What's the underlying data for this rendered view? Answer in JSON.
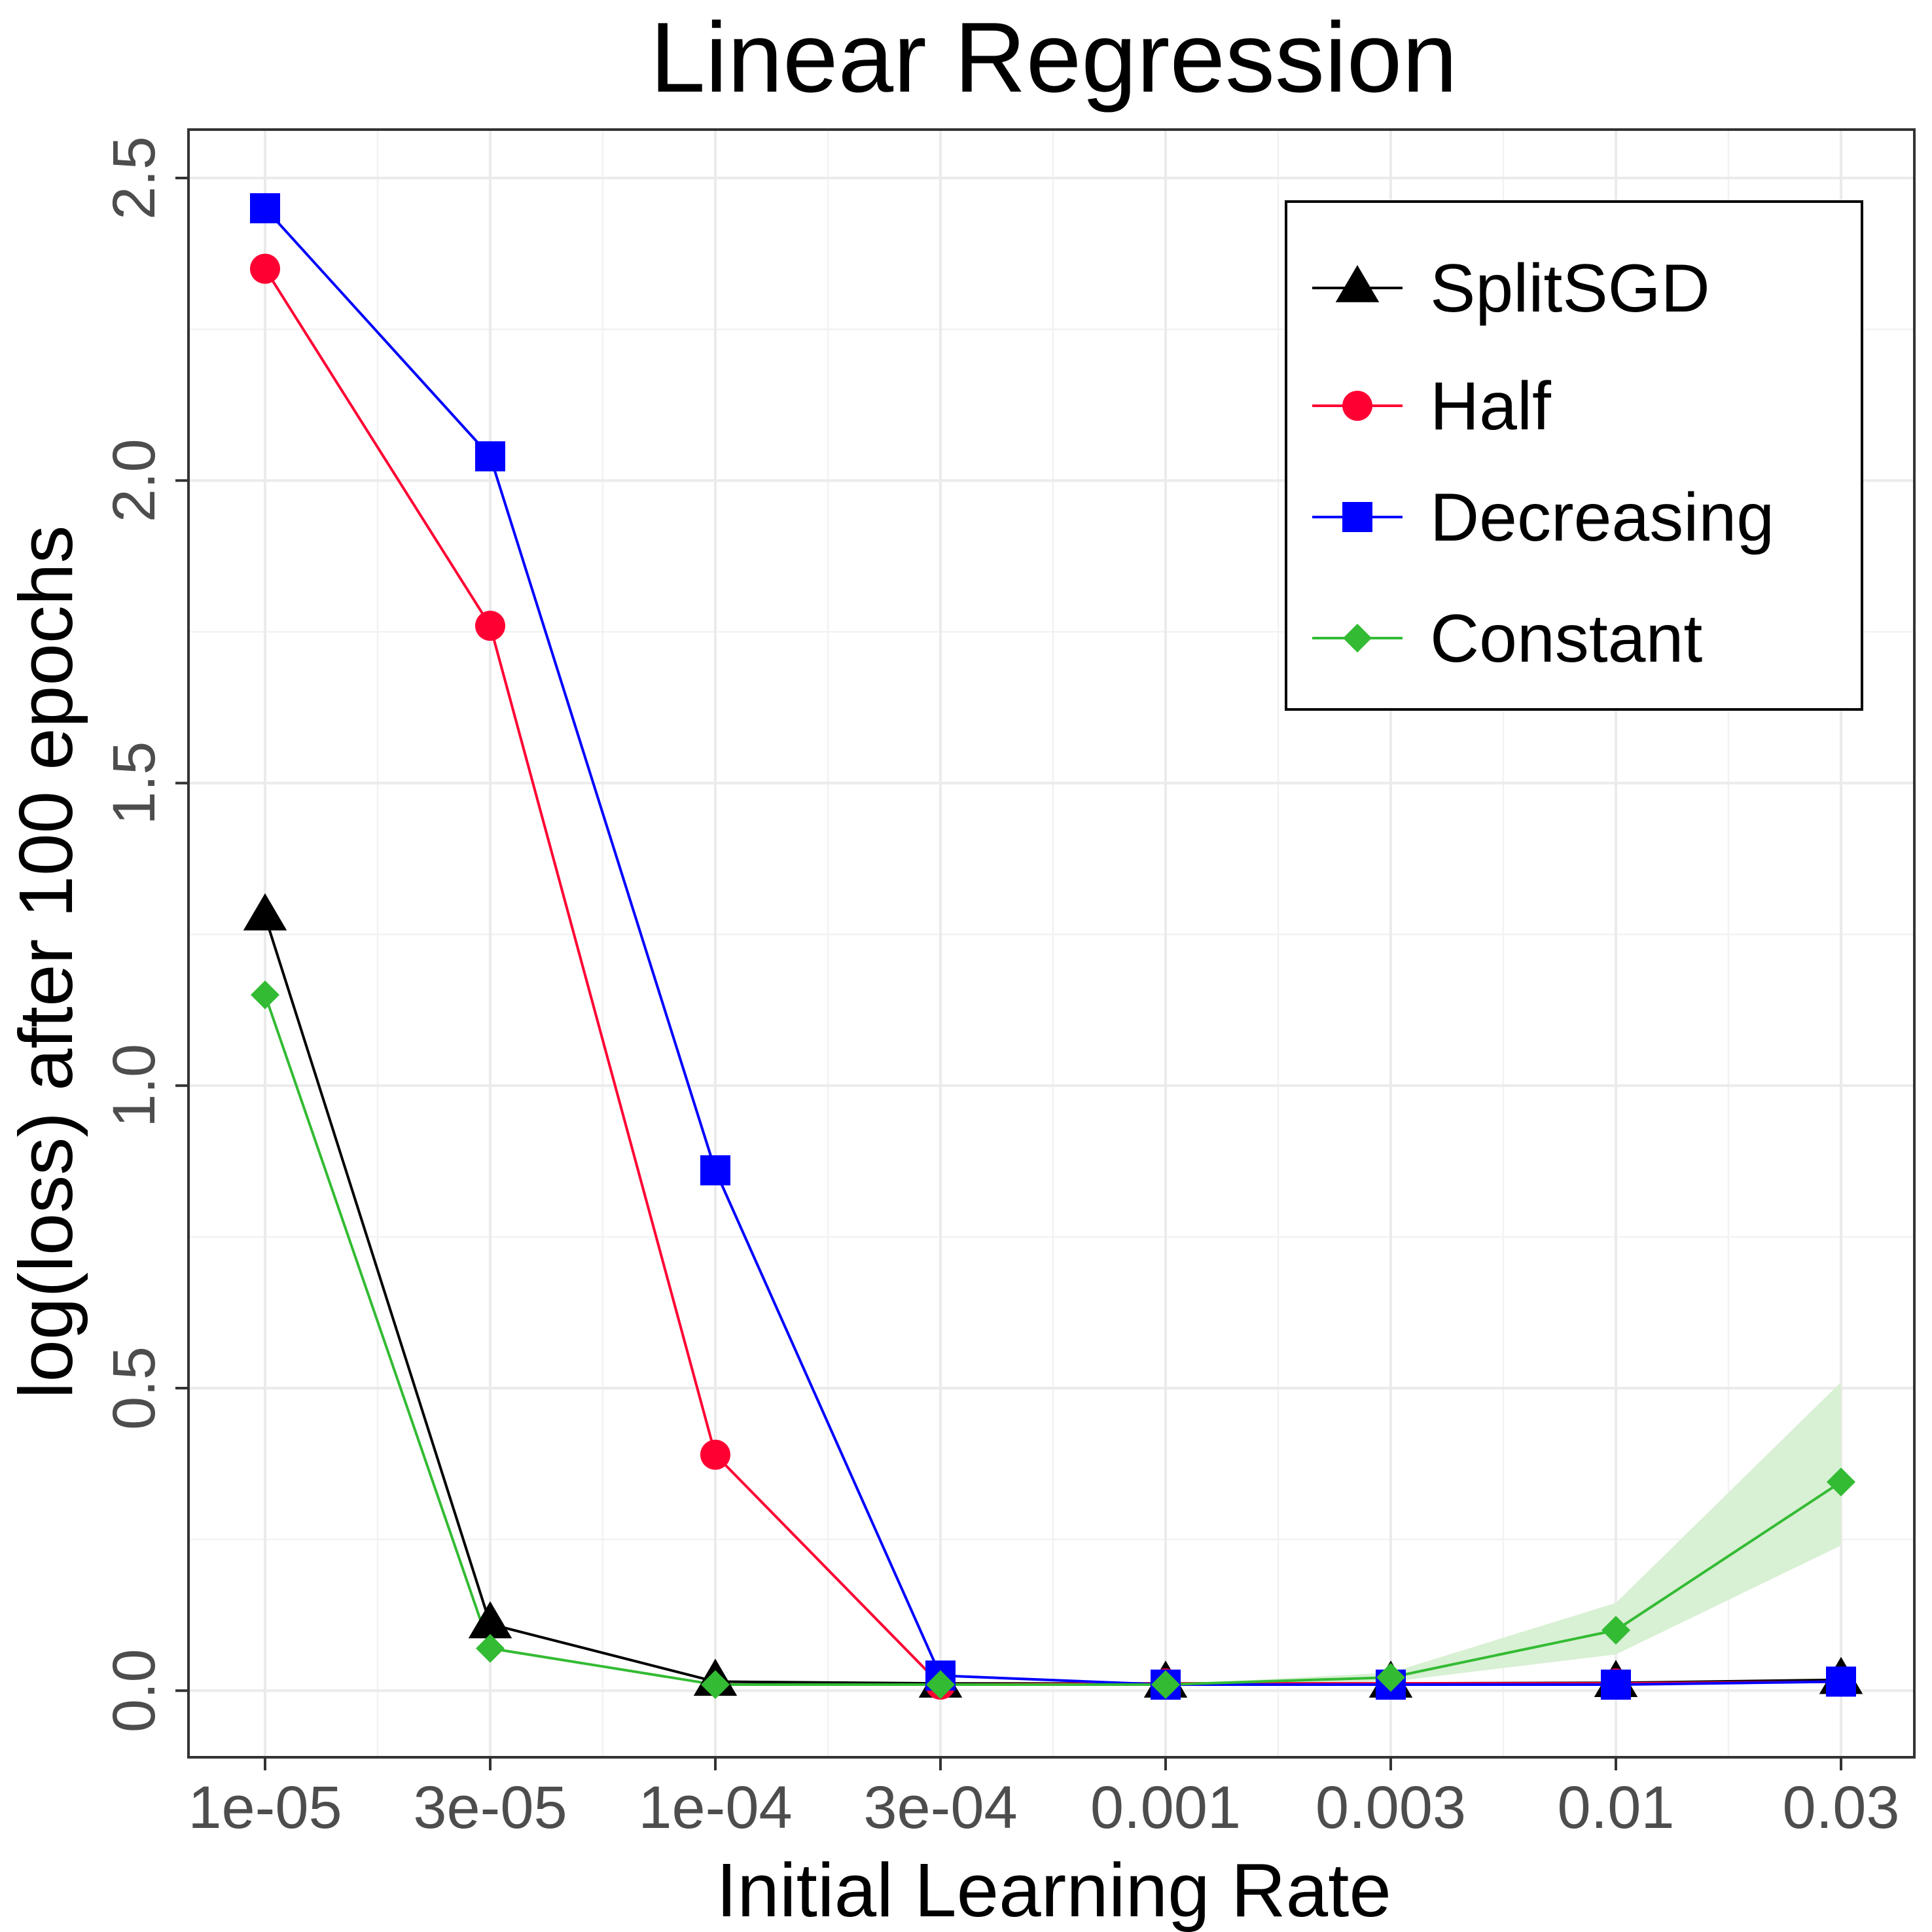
{
  "chart_data": {
    "type": "line",
    "title": "Linear Regression",
    "xlabel": "Initial Learning Rate",
    "ylabel": "log(loss) after 100 epochs",
    "categories": [
      "1e-05",
      "3e-05",
      "1e-04",
      "3e-04",
      "0.001",
      "0.003",
      "0.01",
      "0.03"
    ],
    "ylim": [
      -0.11,
      2.58
    ],
    "yticks": [
      0.0,
      0.5,
      1.0,
      1.5,
      2.0,
      2.5
    ],
    "ytick_labels": [
      "0.0",
      "0.5",
      "1.0",
      "1.5",
      "2.0",
      "2.5"
    ],
    "grid": true,
    "legend_position": "top-right",
    "series": [
      {
        "name": "SplitSGD",
        "color": "#000000",
        "marker": "triangle",
        "values": [
          1.28,
          0.11,
          0.015,
          0.012,
          0.012,
          0.012,
          0.013,
          0.018
        ]
      },
      {
        "name": "Half",
        "color": "#ff0033",
        "marker": "circle",
        "values": [
          2.35,
          1.76,
          0.39,
          0.01,
          0.012,
          0.012,
          0.012,
          0.015
        ]
      },
      {
        "name": "Decreasing",
        "color": "#0000ff",
        "marker": "square",
        "values": [
          2.45,
          2.04,
          0.86,
          0.025,
          0.01,
          0.01,
          0.01,
          0.015
        ]
      },
      {
        "name": "Constant",
        "color": "#33bb33",
        "marker": "diamond",
        "values": [
          1.15,
          0.07,
          0.01,
          0.01,
          0.01,
          0.022,
          0.1,
          0.345
        ],
        "band_low": [
          1.15,
          0.07,
          0.01,
          0.01,
          0.01,
          0.015,
          0.06,
          0.24
        ],
        "band_high": [
          1.15,
          0.07,
          0.01,
          0.01,
          0.01,
          0.03,
          0.145,
          0.51
        ],
        "band_color": "#d8f0d3"
      }
    ]
  }
}
